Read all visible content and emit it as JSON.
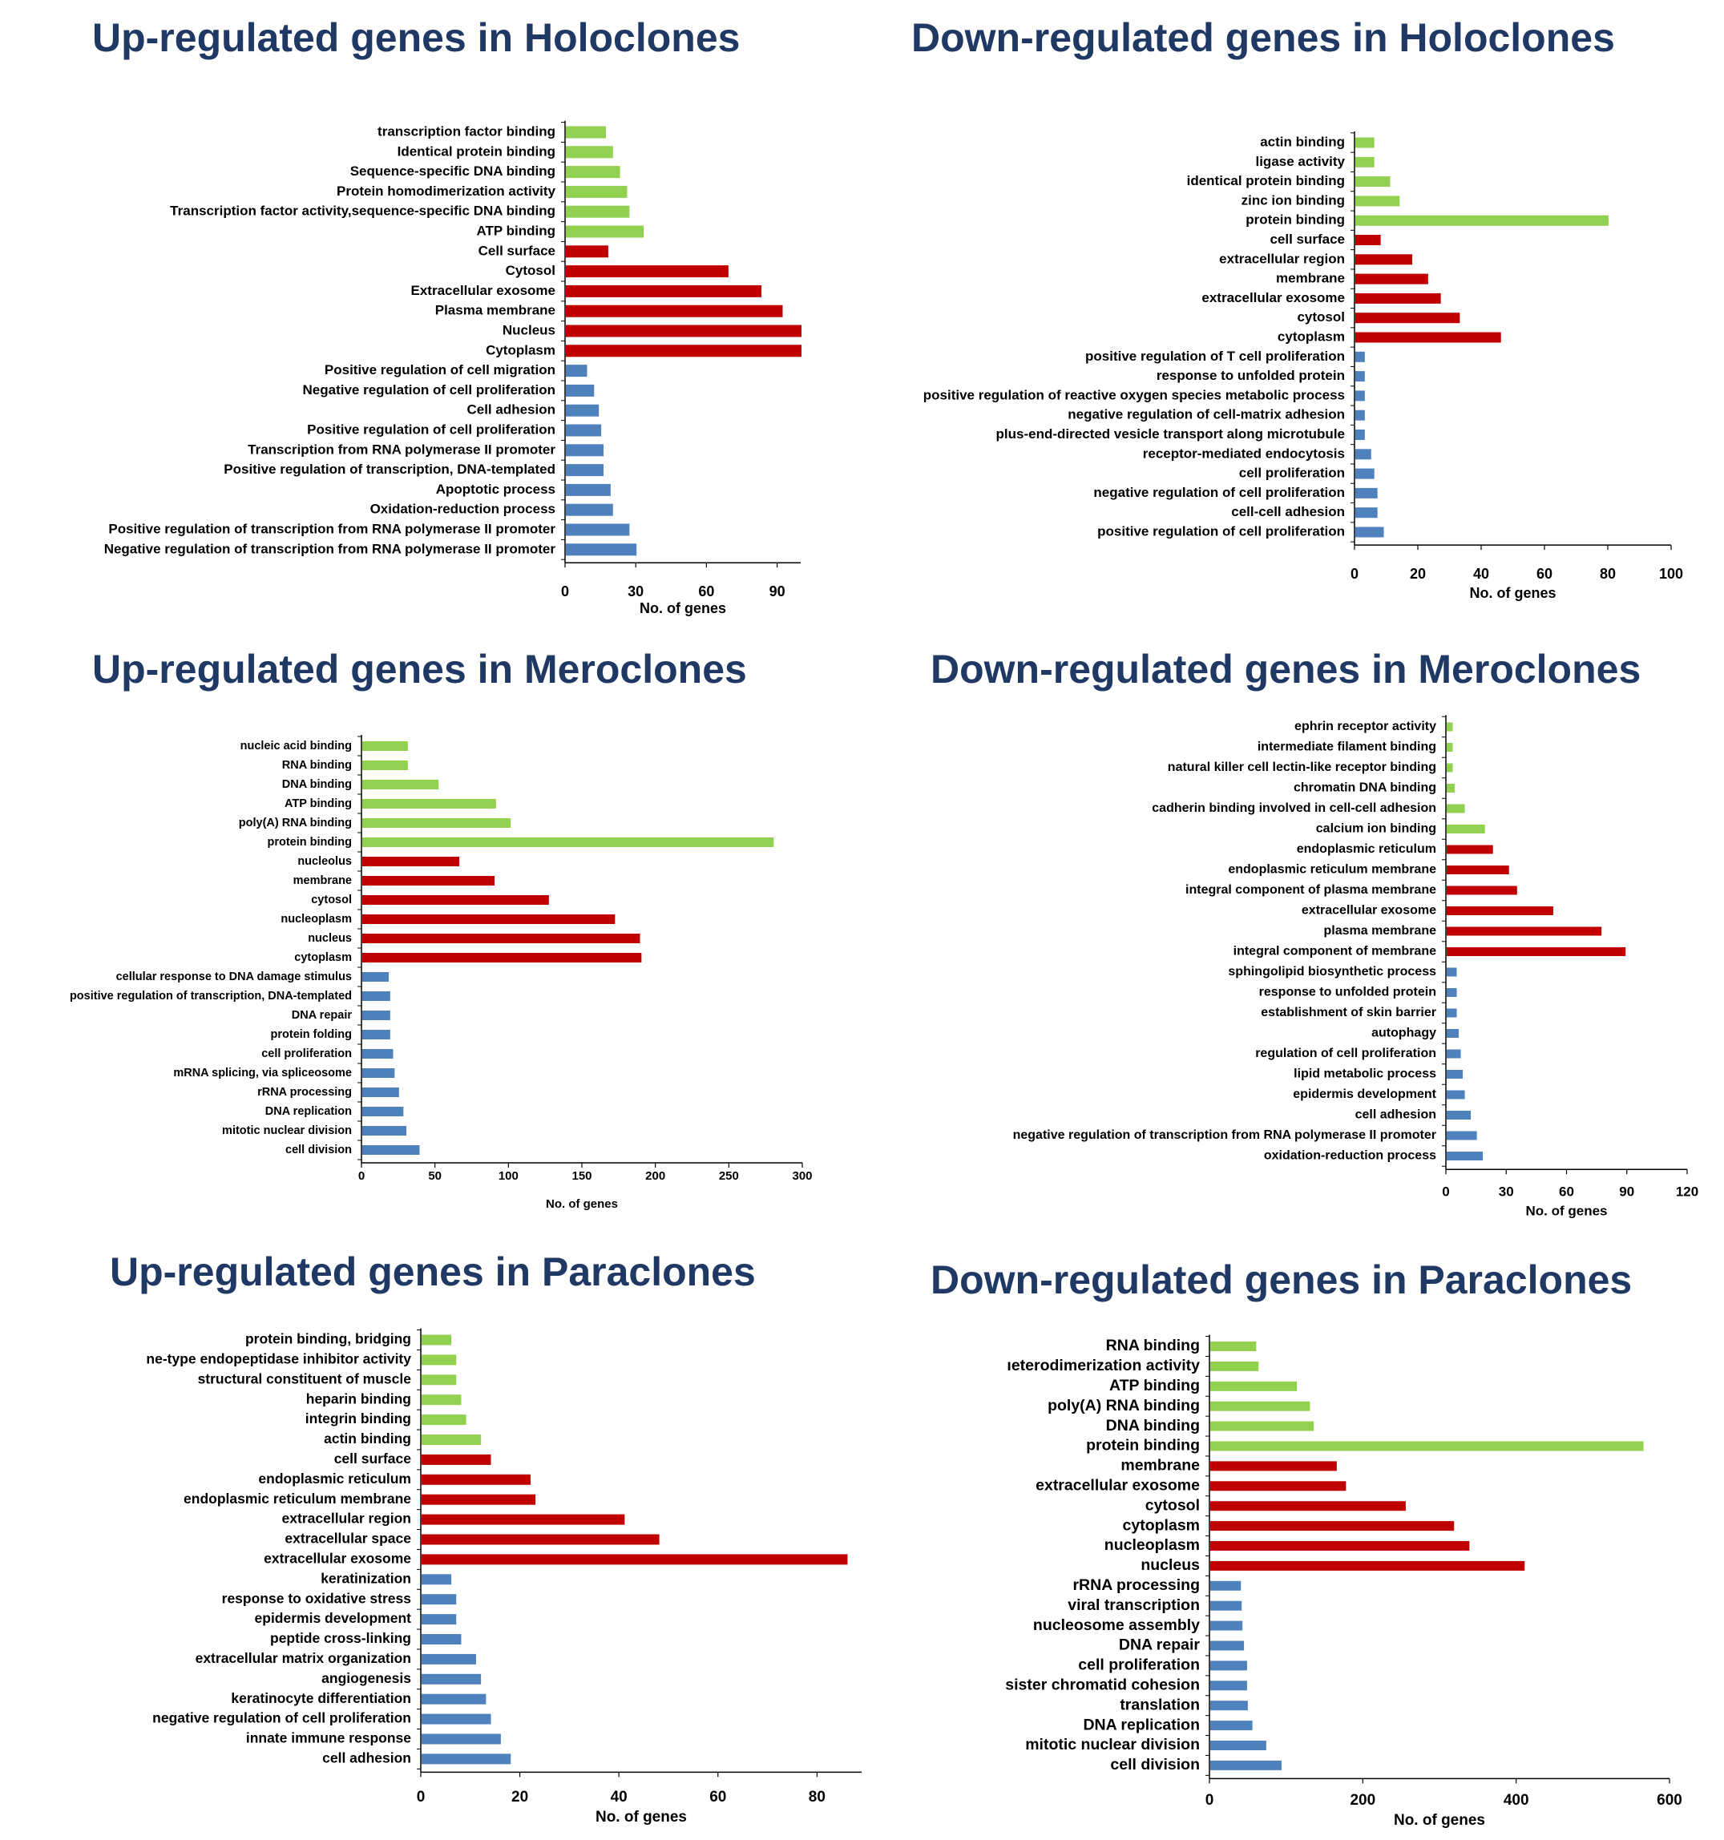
{
  "colors": {
    "mf": "#92d050",
    "cc": "#c00000",
    "bp": "#4f81bd",
    "title": "#1f3864"
  },
  "charts": [
    {
      "title": "Up-regulated genes in Holoclones",
      "chart_data": {
        "type": "bar",
        "orientation": "horizontal",
        "xlabel": "No. of genes",
        "xlim": [
          0,
          100
        ],
        "ticks": [
          0,
          30,
          60,
          90
        ],
        "tick_labels": [
          "0",
          "30",
          "60",
          "90"
        ],
        "categories": [
          "transcription factor binding",
          "Identical protein binding",
          "Sequence-specific DNA binding",
          "Protein homodimerization activity",
          "Transcription factor activity,sequence-specific DNA binding",
          "ATP binding",
          "Cell surface",
          "Cytosol",
          "Extracellular exosome",
          "Plasma membrane",
          "Nucleus",
          "Cytoplasm",
          "Positive regulation of cell migration",
          "Negative regulation of cell proliferation",
          "Cell adhesion",
          "Positive regulation of cell proliferation",
          "Transcription from RNA polymerase II promoter",
          "Positive regulation of transcription, DNA-templated",
          "Apoptotic process",
          "Oxidation-reduction process",
          "Positive regulation of transcription from RNA polymerase II promoter",
          "Negative regulation of transcription from RNA polymerase II promoter"
        ],
        "values": [
          17,
          20,
          23,
          26,
          27,
          33,
          18,
          69,
          83,
          92,
          100,
          100,
          9,
          12,
          14,
          15,
          16,
          16,
          19,
          20,
          27,
          30
        ],
        "groups": [
          "mf",
          "mf",
          "mf",
          "mf",
          "mf",
          "mf",
          "cc",
          "cc",
          "cc",
          "cc",
          "cc",
          "cc",
          "bp",
          "bp",
          "bp",
          "bp",
          "bp",
          "bp",
          "bp",
          "bp",
          "bp",
          "bp"
        ]
      }
    },
    {
      "title": "Down-regulated genes in Holoclones",
      "chart_data": {
        "type": "bar",
        "orientation": "horizontal",
        "xlabel": "No. of genes",
        "xlim": [
          0,
          100
        ],
        "ticks": [
          0,
          20,
          40,
          60,
          80,
          100
        ],
        "tick_labels": [
          "0",
          "20",
          "40",
          "60",
          "80",
          "100"
        ],
        "categories": [
          "actin binding",
          "ligase activity",
          "identical protein binding",
          "zinc ion binding",
          "protein binding",
          "cell surface",
          "extracellular region",
          "membrane",
          "extracellular exosome",
          "cytosol",
          "cytoplasm",
          "positive regulation of T cell proliferation",
          "response to unfolded protein",
          "positive regulation of reactive oxygen species metabolic process",
          "negative regulation of cell-matrix adhesion",
          "plus-end-directed vesicle transport along microtubule",
          "receptor-mediated endocytosis",
          "cell proliferation",
          "negative regulation of cell proliferation",
          "cell-cell adhesion",
          "positive regulation of cell proliferation"
        ],
        "values": [
          6,
          6,
          11,
          14,
          80,
          8,
          18,
          23,
          27,
          33,
          46,
          3,
          3,
          3,
          3,
          3,
          5,
          6,
          7,
          7,
          9
        ],
        "groups": [
          "mf",
          "mf",
          "mf",
          "mf",
          "mf",
          "cc",
          "cc",
          "cc",
          "cc",
          "cc",
          "cc",
          "bp",
          "bp",
          "bp",
          "bp",
          "bp",
          "bp",
          "bp",
          "bp",
          "bp",
          "bp"
        ]
      }
    },
    {
      "title": "Up-regulated genes in Meroclones",
      "chart_data": {
        "type": "bar",
        "orientation": "horizontal",
        "xlabel": "No. of genes",
        "xlim": [
          0,
          300
        ],
        "ticks": [
          0,
          50,
          100,
          150,
          200,
          250,
          300
        ],
        "tick_labels": [
          "0",
          "50",
          "100",
          "150",
          "200",
          "250",
          "300"
        ],
        "categories": [
          "nucleic acid binding",
          "RNA binding",
          "DNA binding",
          "ATP binding",
          "poly(A) RNA binding",
          "protein binding",
          "nucleolus",
          "membrane",
          "cytosol",
          "nucleoplasm",
          "nucleus",
          "cytoplasm",
          "cellular response to DNA damage stimulus",
          "positive regulation of transcription, DNA-templated",
          "DNA repair",
          "protein folding",
          "cell proliferation",
          "mRNA splicing, via spliceosome",
          "rRNA processing",
          "DNA replication",
          "mitotic nuclear division",
          "cell division"
        ],
        "values": [
          31,
          31,
          52,
          91,
          101,
          280,
          66,
          90,
          127,
          172,
          189,
          190,
          18,
          19,
          19,
          19,
          21,
          22,
          25,
          28,
          30,
          39
        ],
        "groups": [
          "mf",
          "mf",
          "mf",
          "mf",
          "mf",
          "mf",
          "cc",
          "cc",
          "cc",
          "cc",
          "cc",
          "cc",
          "bp",
          "bp",
          "bp",
          "bp",
          "bp",
          "bp",
          "bp",
          "bp",
          "bp",
          "bp"
        ]
      }
    },
    {
      "title": "Down-regulated genes in Meroclones",
      "chart_data": {
        "type": "bar",
        "orientation": "horizontal",
        "xlabel": "No. of genes",
        "xlim": [
          0,
          120
        ],
        "ticks": [
          0,
          30,
          60,
          90,
          120
        ],
        "tick_labels": [
          "0",
          "30",
          "60",
          "90",
          "120"
        ],
        "categories": [
          "ephrin receptor activity",
          "intermediate filament binding",
          "natural killer cell lectin-like receptor binding",
          "chromatin DNA binding",
          "cadherin binding involved in cell-cell adhesion",
          "calcium ion binding",
          "endoplasmic reticulum",
          "endoplasmic reticulum membrane",
          "integral component of plasma membrane",
          "extracellular exosome",
          "plasma membrane",
          "integral component of membrane",
          "sphingolipid biosynthetic process",
          "response to unfolded protein",
          "establishment of skin barrier",
          "autophagy",
          "regulation of cell proliferation",
          "lipid metabolic process",
          "epidermis development",
          "cell adhesion",
          "negative regulation of transcription from RNA polymerase II promoter",
          "oxidation-reduction process"
        ],
        "values": [
          3,
          3,
          3,
          4,
          9,
          19,
          23,
          31,
          35,
          53,
          77,
          89,
          5,
          5,
          5,
          6,
          7,
          8,
          9,
          12,
          15,
          18
        ],
        "groups": [
          "mf",
          "mf",
          "mf",
          "mf",
          "mf",
          "mf",
          "cc",
          "cc",
          "cc",
          "cc",
          "cc",
          "cc",
          "bp",
          "bp",
          "bp",
          "bp",
          "bp",
          "bp",
          "bp",
          "bp",
          "bp",
          "bp"
        ]
      }
    },
    {
      "title": "Up-regulated genes in Paraclones",
      "chart_data": {
        "type": "bar",
        "orientation": "horizontal",
        "xlabel": "No. of genes",
        "xlim": [
          0,
          89
        ],
        "ticks": [
          0,
          20,
          40,
          60,
          80
        ],
        "tick_labels": [
          "0",
          "20",
          "40",
          "60",
          "80"
        ],
        "categories": [
          "protein binding, bridging",
          "ne-type endopeptidase inhibitor activity",
          "structural constituent of muscle",
          "heparin binding",
          "integrin binding",
          "actin binding",
          "cell surface",
          "endoplasmic reticulum",
          "endoplasmic reticulum membrane",
          "extracellular region",
          "extracellular space",
          "extracellular exosome",
          "keratinization",
          "response to oxidative stress",
          "epidermis development",
          "peptide cross-linking",
          "extracellular matrix organization",
          "angiogenesis",
          "keratinocyte differentiation",
          "negative regulation of cell proliferation",
          "innate immune response",
          "cell adhesion"
        ],
        "values": [
          6,
          7,
          7,
          8,
          9,
          12,
          14,
          22,
          23,
          41,
          48,
          86,
          6,
          7,
          7,
          8,
          11,
          12,
          13,
          14,
          16,
          18
        ],
        "groups": [
          "mf",
          "mf",
          "mf",
          "mf",
          "mf",
          "mf",
          "cc",
          "cc",
          "cc",
          "cc",
          "cc",
          "cc",
          "bp",
          "bp",
          "bp",
          "bp",
          "bp",
          "bp",
          "bp",
          "bp",
          "bp",
          "bp"
        ]
      }
    },
    {
      "title": "Down-regulated genes in Paraclones",
      "chart_data": {
        "type": "bar",
        "orientation": "horizontal",
        "xlabel": "No. of genes",
        "xlim": [
          0,
          600
        ],
        "ticks": [
          0,
          200,
          400,
          600
        ],
        "tick_labels": [
          "0",
          "200",
          "400",
          "600"
        ],
        "categories": [
          "RNA binding",
          "ıeterodimerization activity",
          "ATP binding",
          "poly(A) RNA binding",
          "DNA binding",
          "protein binding",
          "membrane",
          "extracellular exosome",
          "cytosol",
          "cytoplasm",
          "nucleoplasm",
          "nucleus",
          "rRNA processing",
          "viral transcription",
          "nucleosome assembly",
          "DNA repair",
          "cell proliferation",
          "sister chromatid cohesion",
          "translation",
          "DNA replication",
          "mitotic nuclear division",
          "cell division"
        ],
        "values": [
          60,
          63,
          113,
          130,
          135,
          565,
          165,
          177,
          255,
          318,
          338,
          410,
          40,
          41,
          42,
          44,
          48,
          48,
          49,
          55,
          73,
          93
        ],
        "groups": [
          "mf",
          "mf",
          "mf",
          "mf",
          "mf",
          "mf",
          "cc",
          "cc",
          "cc",
          "cc",
          "cc",
          "cc",
          "bp",
          "bp",
          "bp",
          "bp",
          "bp",
          "bp",
          "bp",
          "bp",
          "bp",
          "bp"
        ]
      }
    }
  ]
}
